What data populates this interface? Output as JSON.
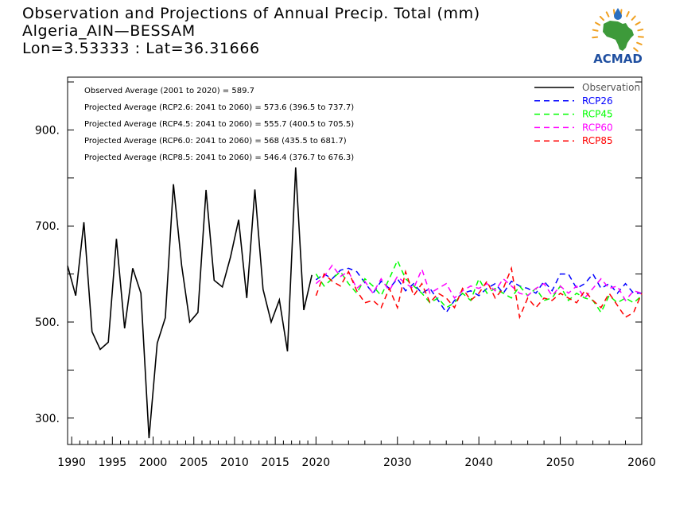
{
  "header": {
    "title_line1": "Observation and Projections of Annual Precip. Total (mm)",
    "title_line2": "Algeria_AIN—BESSAM",
    "title_line3": "Lon=3.53333 : Lat=36.31666"
  },
  "logo": {
    "text": "ACMAD",
    "icon": "africa-map-icon",
    "colors": {
      "text": "#1f4fa0",
      "map": "#3d9a3a",
      "rays": "#f0a020",
      "drop": "#2a6fc0"
    }
  },
  "chart_data": {
    "type": "line",
    "title": "Observation and Projections of Annual Precip. Total (mm)",
    "xlabel": "",
    "ylabel": "",
    "xlim": [
      1989.5,
      2060
    ],
    "ylim": [
      245,
      1010
    ],
    "x_ticks": [
      1990,
      1995,
      2000,
      2005,
      2010,
      2015,
      2020,
      2030,
      2040,
      2050,
      2060
    ],
    "x_tick_labels": [
      "1990",
      "1995",
      "2000",
      "2005",
      "2010",
      "2015",
      "2020",
      "2030",
      "2040",
      "2050",
      "2060"
    ],
    "y_ticks": [
      300,
      500,
      700,
      900
    ],
    "y_tick_labels": [
      "300.",
      "500.",
      "700.",
      "900."
    ],
    "annotations": [
      "Observed Average (2001 to 2020) = 589.7",
      "Projected Average (RCP2.6: 2041 to 2060) = 573.6 (396.5 to 737.7)",
      "Projected Average (RCP4.5: 2041 to 2060) = 555.7 (400.5 to 705.5)",
      "Projected Average (RCP6.0: 2041 to 2060) = 568 (435.5 to 681.7)",
      "Projected Average (RCP8.5: 2041 to 2060) = 546.4 (376.7 to 676.3)"
    ],
    "legend_position": "top-right",
    "series": [
      {
        "name": "Observation",
        "color": "#000000",
        "dash": "solid",
        "x": [
          1989.5,
          1990.5,
          1991.5,
          1992.5,
          1993.5,
          1994.5,
          1995.5,
          1996.5,
          1997.5,
          1998.5,
          1999.5,
          2000.5,
          2001.5,
          2002.5,
          2003.5,
          2004.5,
          2005.5,
          2006.5,
          2007.5,
          2008.5,
          2009.5,
          2010.5,
          2011.5,
          2012.5,
          2013.5,
          2014.5,
          2015.5,
          2016.5,
          2017.5,
          2018.5,
          2019.5
        ],
        "values": [
          617,
          555,
          708,
          480,
          443,
          458,
          673,
          487,
          612,
          560,
          258,
          456,
          509,
          787,
          618,
          500,
          520,
          775,
          587,
          573,
          635,
          713,
          550,
          776,
          568,
          500,
          546,
          439,
          822,
          525,
          598
        ]
      },
      {
        "name": "RCP26",
        "color": "#0000ff",
        "dash": "dashed",
        "x": [
          2020,
          2021,
          2022,
          2023,
          2024,
          2025,
          2026,
          2027,
          2028,
          2029,
          2030,
          2031,
          2032,
          2033,
          2034,
          2035,
          2036,
          2037,
          2038,
          2039,
          2040,
          2041,
          2042,
          2043,
          2044,
          2045,
          2046,
          2047,
          2048,
          2049,
          2050,
          2051,
          2052,
          2053,
          2054,
          2055,
          2056,
          2057,
          2058,
          2059,
          2060
        ],
        "values": [
          588,
          600,
          590,
          608,
          612,
          605,
          582,
          560,
          585,
          570,
          590,
          565,
          580,
          560,
          570,
          545,
          520,
          545,
          560,
          565,
          555,
          570,
          580,
          560,
          585,
          575,
          570,
          560,
          585,
          565,
          600,
          600,
          570,
          580,
          600,
          570,
          580,
          560,
          580,
          560,
          560
        ]
      },
      {
        "name": "RCP45",
        "color": "#00ff00",
        "dash": "dashed",
        "x": [
          2020,
          2021,
          2022,
          2023,
          2024,
          2025,
          2026,
          2027,
          2028,
          2029,
          2030,
          2031,
          2032,
          2033,
          2034,
          2035,
          2036,
          2037,
          2038,
          2039,
          2040,
          2041,
          2042,
          2043,
          2044,
          2045,
          2046,
          2047,
          2048,
          2049,
          2050,
          2051,
          2052,
          2053,
          2054,
          2055,
          2056,
          2057,
          2058,
          2059,
          2060
        ],
        "values": [
          600,
          575,
          590,
          605,
          580,
          560,
          590,
          575,
          555,
          590,
          628,
          590,
          575,
          560,
          540,
          550,
          530,
          540,
          560,
          545,
          590,
          560,
          570,
          560,
          550,
          575,
          555,
          570,
          545,
          550,
          575,
          545,
          560,
          550,
          545,
          520,
          555,
          540,
          550,
          540,
          555
        ]
      },
      {
        "name": "RCP60",
        "color": "#ff00ff",
        "dash": "dashed",
        "x": [
          2020,
          2021,
          2022,
          2023,
          2024,
          2025,
          2026,
          2027,
          2028,
          2029,
          2030,
          2031,
          2032,
          2033,
          2034,
          2035,
          2036,
          2037,
          2038,
          2039,
          2040,
          2041,
          2042,
          2043,
          2044,
          2045,
          2046,
          2047,
          2048,
          2049,
          2050,
          2051,
          2052,
          2053,
          2054,
          2055,
          2056,
          2057,
          2058,
          2059,
          2060
        ],
        "values": [
          580,
          595,
          618,
          595,
          605,
          570,
          585,
          560,
          590,
          565,
          595,
          580,
          570,
          610,
          560,
          570,
          580,
          550,
          565,
          575,
          570,
          580,
          565,
          590,
          575,
          560,
          555,
          570,
          580,
          555,
          575,
          560,
          575,
          550,
          570,
          590,
          570,
          575,
          545,
          565,
          560
        ]
      },
      {
        "name": "RCP85",
        "color": "#ff0000",
        "dash": "dashed",
        "x": [
          2020,
          2021,
          2022,
          2023,
          2024,
          2025,
          2026,
          2027,
          2028,
          2029,
          2030,
          2031,
          2032,
          2033,
          2034,
          2035,
          2036,
          2037,
          2038,
          2039,
          2040,
          2041,
          2042,
          2043,
          2044,
          2045,
          2046,
          2047,
          2048,
          2049,
          2050,
          2051,
          2052,
          2053,
          2054,
          2055,
          2056,
          2057,
          2058,
          2059,
          2060
        ],
        "values": [
          555,
          600,
          585,
          575,
          605,
          565,
          540,
          545,
          530,
          570,
          530,
          605,
          555,
          580,
          540,
          560,
          550,
          530,
          570,
          545,
          560,
          585,
          550,
          570,
          612,
          510,
          550,
          530,
          550,
          545,
          560,
          550,
          540,
          565,
          545,
          530,
          560,
          535,
          510,
          520,
          560
        ]
      }
    ]
  }
}
